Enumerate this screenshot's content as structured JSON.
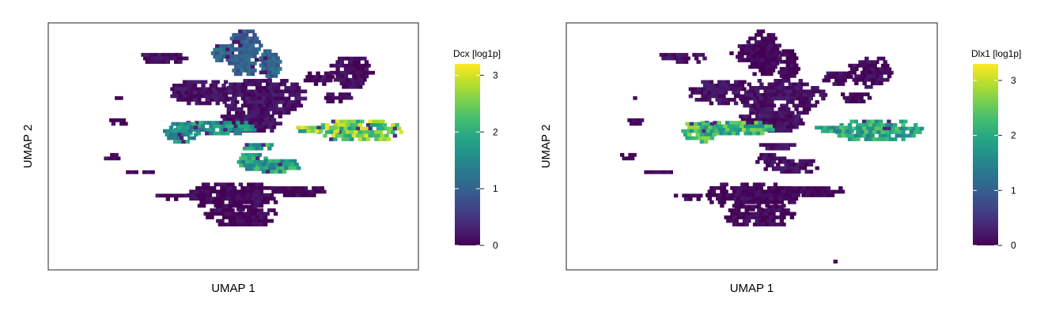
{
  "chart_data": [
    {
      "type": "hexbin-embedding",
      "xlabel": "UMAP 1",
      "ylabel": "UMAP 2",
      "colorbar": {
        "title": "Dcx [log1p]",
        "colormap": "viridis",
        "range": [
          0,
          3.2
        ],
        "ticks": [
          "0",
          "1",
          "2",
          "3"
        ]
      },
      "clusters": [
        {
          "region": "top-left-arm",
          "expression": 1.0
        },
        {
          "region": "upper-center-mass",
          "expression": 0.15
        },
        {
          "region": "upper-right-arm",
          "expression": 0.1
        },
        {
          "region": "middle-left-band",
          "expression": 1.6
        },
        {
          "region": "middle-right-band",
          "expression": 2.4
        },
        {
          "region": "center-loop",
          "expression": 1.8
        },
        {
          "region": "lower-mass",
          "expression": 0.05
        },
        {
          "region": "scattered-outliers",
          "expression": 0.05
        }
      ]
    },
    {
      "type": "hexbin-embedding",
      "xlabel": "UMAP 1",
      "ylabel": "UMAP 2",
      "colorbar": {
        "title": "Dlx1 [log1p]",
        "colormap": "viridis",
        "range": [
          0,
          3.3
        ],
        "ticks": [
          "0",
          "1",
          "2",
          "3"
        ]
      },
      "clusters": [
        {
          "region": "top-left-arm",
          "expression": 0.05
        },
        {
          "region": "upper-center-mass",
          "expression": 0.15
        },
        {
          "region": "upper-right-arm",
          "expression": 0.1
        },
        {
          "region": "middle-left-band",
          "expression": 2.2
        },
        {
          "region": "middle-right-band",
          "expression": 1.9
        },
        {
          "region": "center-loop",
          "expression": 0.15
        },
        {
          "region": "lower-mass",
          "expression": 0.05
        },
        {
          "region": "scattered-outliers",
          "expression": 0.05
        }
      ]
    }
  ]
}
